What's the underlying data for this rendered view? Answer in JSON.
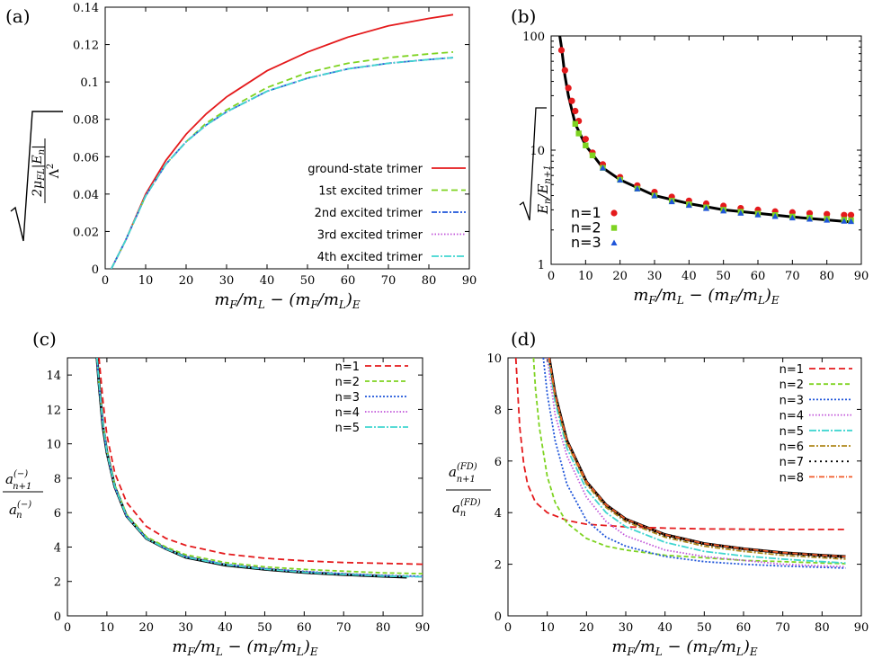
{
  "figure_labels": [
    "(a)",
    "(b)",
    "(c)",
    "(d)"
  ],
  "colors": {
    "red": "#e41a1c",
    "green": "#7ed321",
    "blue": "#1f55d9",
    "purple": "#c154d9",
    "cyan": "#40d6d0",
    "olive": "#b08a1e",
    "black": "#000000",
    "orange": "#f05a28"
  },
  "chart_data": [
    {
      "type": "line",
      "panel": "(a)",
      "xlabel": "m_F/m_L − (m_F/m_L)_E",
      "ylabel": "√(2μ_FL|E_n|/Λ²)",
      "xlim": [
        0,
        90
      ],
      "ylim": [
        0,
        0.14
      ],
      "yscale": "linear",
      "xticks": [
        0,
        10,
        20,
        30,
        40,
        50,
        60,
        70,
        80,
        90
      ],
      "yticks": [
        0,
        0.02,
        0.04,
        0.06,
        0.08,
        0.1,
        0.12,
        0.14
      ],
      "ytick_labels": [
        "0",
        "0.02",
        "0.04",
        "0.06",
        "0.08",
        "0.1",
        "0.12",
        "0.14"
      ],
      "legend_position": "bottom-right",
      "series": [
        {
          "name": "ground-state trimer",
          "color": "#e41a1c",
          "dash": "none",
          "x": [
            1.5,
            5,
            10,
            15,
            20,
            25,
            30,
            40,
            50,
            60,
            70,
            80,
            86
          ],
          "y": [
            0,
            0.015,
            0.04,
            0.058,
            0.072,
            0.083,
            0.092,
            0.106,
            0.116,
            0.124,
            0.13,
            0.134,
            0.136
          ]
        },
        {
          "name": "1st excited trimer",
          "color": "#7ed321",
          "dash": "7,4",
          "x": [
            1.5,
            5,
            10,
            15,
            20,
            25,
            30,
            40,
            50,
            60,
            70,
            80,
            86
          ],
          "y": [
            0,
            0.015,
            0.039,
            0.056,
            0.068,
            0.078,
            0.085,
            0.097,
            0.105,
            0.11,
            0.113,
            0.115,
            0.116
          ]
        },
        {
          "name": "2nd excited trimer",
          "color": "#1f55d9",
          "dash": "6,2,2,2",
          "x": [
            1.5,
            5,
            10,
            15,
            20,
            25,
            30,
            40,
            50,
            60,
            70,
            80,
            86
          ],
          "y": [
            0,
            0.015,
            0.039,
            0.056,
            0.068,
            0.077,
            0.084,
            0.095,
            0.102,
            0.107,
            0.11,
            0.112,
            0.113
          ]
        },
        {
          "name": "3rd excited trimer",
          "color": "#c154d9",
          "dash": "1.5,2",
          "x": [
            1.5,
            5,
            10,
            15,
            20,
            25,
            30,
            40,
            50,
            60,
            70,
            80,
            86
          ],
          "y": [
            0,
            0.015,
            0.039,
            0.056,
            0.068,
            0.077,
            0.084,
            0.095,
            0.102,
            0.107,
            0.11,
            0.112,
            0.113
          ]
        },
        {
          "name": "4th excited trimer",
          "color": "#40d6d0",
          "dash": "8,2,2,2",
          "x": [
            1.5,
            5,
            10,
            15,
            20,
            25,
            30,
            40,
            50,
            60,
            70,
            80,
            86
          ],
          "y": [
            0,
            0.015,
            0.039,
            0.056,
            0.068,
            0.077,
            0.084,
            0.095,
            0.102,
            0.107,
            0.11,
            0.112,
            0.113
          ]
        }
      ]
    },
    {
      "type": "scatter",
      "panel": "(b)",
      "xlabel": "m_F/m_L − (m_F/m_L)_E",
      "ylabel": "√(E_n/E_{n+1})",
      "xlim": [
        0,
        90
      ],
      "ylim": [
        1,
        100
      ],
      "yscale": "log",
      "xticks": [
        0,
        10,
        20,
        30,
        40,
        50,
        60,
        70,
        80,
        90
      ],
      "yticks": [
        1,
        10,
        100
      ],
      "ytick_labels": [
        "1",
        "10",
        "100"
      ],
      "legend_position": "bottom-left",
      "reference_curve": {
        "color": "#000000",
        "x": [
          2.5,
          3,
          4,
          5,
          7,
          10,
          15,
          20,
          30,
          40,
          50,
          60,
          70,
          80,
          87
        ],
        "y": [
          100,
          80,
          45,
          30,
          17,
          11,
          7,
          5.5,
          4,
          3.4,
          3,
          2.8,
          2.6,
          2.45,
          2.35
        ]
      },
      "series": [
        {
          "name": "n=1",
          "color": "#e41a1c",
          "marker": "circle",
          "x": [
            3,
            4,
            5,
            6,
            7,
            8,
            10,
            12,
            15,
            20,
            25,
            30,
            35,
            40,
            45,
            50,
            55,
            60,
            65,
            70,
            75,
            80,
            85,
            87
          ],
          "y": [
            75,
            50,
            35,
            27,
            22,
            18,
            12.5,
            9.5,
            7.5,
            5.8,
            4.9,
            4.3,
            3.9,
            3.6,
            3.4,
            3.25,
            3.1,
            3.0,
            2.9,
            2.85,
            2.8,
            2.75,
            2.7,
            2.7
          ]
        },
        {
          "name": "n=2",
          "color": "#7ed321",
          "marker": "square",
          "x": [
            7,
            8,
            10,
            12,
            15,
            20,
            25,
            30,
            35,
            40,
            45,
            50,
            55,
            60,
            65,
            70,
            75,
            80,
            85,
            87
          ],
          "y": [
            17,
            14,
            11,
            9,
            7,
            5.5,
            4.6,
            4.0,
            3.6,
            3.35,
            3.15,
            3.0,
            2.88,
            2.78,
            2.7,
            2.62,
            2.56,
            2.5,
            2.45,
            2.43
          ]
        },
        {
          "name": "n=3",
          "color": "#1f55d9",
          "marker": "triangle",
          "x": [
            15,
            20,
            25,
            30,
            35,
            40,
            45,
            50,
            55,
            60,
            65,
            70,
            75,
            80,
            85,
            87
          ],
          "y": [
            7,
            5.5,
            4.6,
            4.0,
            3.55,
            3.3,
            3.1,
            2.95,
            2.82,
            2.72,
            2.64,
            2.56,
            2.5,
            2.45,
            2.4,
            2.38
          ]
        }
      ]
    },
    {
      "type": "line",
      "panel": "(c)",
      "xlabel": "m_F/m_L − (m_F/m_L)_E",
      "ylabel": "a_{n+1}^{(−)} / a_n^{(−)}",
      "xlim": [
        0,
        90
      ],
      "ylim": [
        0,
        15
      ],
      "yscale": "linear",
      "xticks": [
        0,
        10,
        20,
        30,
        40,
        50,
        60,
        70,
        80,
        90
      ],
      "yticks": [
        0,
        2,
        4,
        6,
        8,
        10,
        12,
        14
      ],
      "ytick_labels": [
        "0",
        "2",
        "4",
        "6",
        "8",
        "10",
        "12",
        "14"
      ],
      "legend_position": "top-right",
      "reference_curve": {
        "color": "#000000",
        "x": [
          7.5,
          8,
          9,
          10,
          12,
          15,
          20,
          25,
          30,
          40,
          50,
          60,
          70,
          80,
          86
        ],
        "y": [
          15,
          13.5,
          11,
          9.5,
          7.5,
          5.8,
          4.5,
          3.9,
          3.4,
          2.95,
          2.7,
          2.52,
          2.4,
          2.3,
          2.25
        ]
      },
      "series": [
        {
          "name": "n=1",
          "color": "#e41a1c",
          "dash": "7,4",
          "x": [
            8,
            9,
            10,
            12,
            15,
            20,
            25,
            30,
            40,
            50,
            60,
            70,
            80,
            90
          ],
          "y": [
            15,
            12.5,
            10.5,
            8.3,
            6.6,
            5.2,
            4.5,
            4.1,
            3.6,
            3.35,
            3.2,
            3.1,
            3.05,
            3.0
          ]
        },
        {
          "name": "n=2",
          "color": "#7ed321",
          "dash": "5,3",
          "x": [
            7.5,
            8,
            9,
            10,
            12,
            15,
            20,
            25,
            30,
            40,
            50,
            60,
            70,
            80,
            90
          ],
          "y": [
            15,
            13.6,
            11.2,
            9.6,
            7.6,
            5.9,
            4.6,
            4.0,
            3.55,
            3.1,
            2.85,
            2.7,
            2.6,
            2.5,
            2.45
          ]
        },
        {
          "name": "n=3",
          "color": "#1f55d9",
          "dash": "2,2",
          "x": [
            7.5,
            8,
            9,
            10,
            12,
            15,
            20,
            25,
            30,
            40,
            50,
            60,
            70,
            80,
            90
          ],
          "y": [
            15,
            13.5,
            11.1,
            9.5,
            7.5,
            5.8,
            4.5,
            3.9,
            3.45,
            3.0,
            2.75,
            2.58,
            2.45,
            2.35,
            2.3
          ]
        },
        {
          "name": "n=4",
          "color": "#c154d9",
          "dash": "1.5,2",
          "x": [
            7.5,
            8,
            9,
            10,
            12,
            15,
            20,
            25,
            30,
            40,
            50,
            60,
            70,
            80,
            90
          ],
          "y": [
            15,
            13.5,
            11.1,
            9.5,
            7.5,
            5.8,
            4.5,
            3.9,
            3.42,
            2.98,
            2.72,
            2.55,
            2.42,
            2.32,
            2.28
          ]
        },
        {
          "name": "n=5",
          "color": "#40d6d0",
          "dash": "8,2,2,2",
          "x": [
            7.5,
            8,
            9,
            10,
            12,
            15,
            20,
            25,
            30,
            40,
            50,
            60,
            70,
            80,
            90
          ],
          "y": [
            15,
            13.5,
            11.1,
            9.5,
            7.5,
            5.8,
            4.5,
            3.9,
            3.41,
            2.97,
            2.71,
            2.53,
            2.41,
            2.31,
            2.27
          ]
        }
      ]
    },
    {
      "type": "line",
      "panel": "(d)",
      "xlabel": "m_F/m_L − (m_F/m_L)_E",
      "ylabel": "a_{n+1}^{(FD)} / a_n^{(FD)}",
      "xlim": [
        0,
        90
      ],
      "ylim": [
        0,
        10
      ],
      "yscale": "linear",
      "xticks": [
        0,
        10,
        20,
        30,
        40,
        50,
        60,
        70,
        80,
        90
      ],
      "yticks": [
        0,
        2,
        4,
        6,
        8,
        10
      ],
      "ytick_labels": [
        "0",
        "2",
        "4",
        "6",
        "8",
        "10"
      ],
      "legend_position": "top-right",
      "reference_curve": {
        "color": "#000000",
        "x": [
          10.5,
          12,
          15,
          20,
          25,
          30,
          40,
          50,
          60,
          70,
          80,
          86
        ],
        "y": [
          10,
          8.6,
          6.8,
          5.2,
          4.3,
          3.75,
          3.15,
          2.8,
          2.6,
          2.45,
          2.35,
          2.3
        ]
      },
      "series": [
        {
          "name": "n=1",
          "color": "#e41a1c",
          "dash": "7,4",
          "x": [
            2,
            3,
            4,
            5,
            7,
            10,
            15,
            20,
            30,
            40,
            50,
            60,
            70,
            80,
            86
          ],
          "y": [
            10,
            7.3,
            5.9,
            5.1,
            4.4,
            4.0,
            3.7,
            3.55,
            3.45,
            3.4,
            3.37,
            3.36,
            3.35,
            3.35,
            3.35
          ]
        },
        {
          "name": "n=2",
          "color": "#7ed321",
          "dash": "5,3",
          "x": [
            6.5,
            7,
            8,
            10,
            12,
            15,
            20,
            25,
            30,
            40,
            50,
            60,
            70,
            80,
            86
          ],
          "y": [
            10,
            8.8,
            7.3,
            5.4,
            4.4,
            3.6,
            3.0,
            2.7,
            2.55,
            2.35,
            2.25,
            2.15,
            2.1,
            2.05,
            2.02
          ]
        },
        {
          "name": "n=3",
          "color": "#1f55d9",
          "dash": "2,2",
          "x": [
            9,
            10,
            12,
            15,
            20,
            25,
            30,
            40,
            50,
            60,
            70,
            80,
            86
          ],
          "y": [
            10,
            8.6,
            6.8,
            5.1,
            3.7,
            3.05,
            2.7,
            2.3,
            2.1,
            2.0,
            1.93,
            1.88,
            1.85
          ]
        },
        {
          "name": "n=4",
          "color": "#c154d9",
          "dash": "1.5,2",
          "x": [
            10,
            12,
            15,
            20,
            25,
            30,
            40,
            50,
            60,
            70,
            80,
            86
          ],
          "y": [
            10,
            7.8,
            6.2,
            4.6,
            3.65,
            3.1,
            2.55,
            2.3,
            2.15,
            2.0,
            1.93,
            1.9
          ]
        },
        {
          "name": "n=5",
          "color": "#40d6d0",
          "dash": "8,2,2,2",
          "x": [
            10.3,
            12,
            15,
            20,
            25,
            30,
            40,
            50,
            60,
            70,
            80,
            86
          ],
          "y": [
            10,
            8.3,
            6.5,
            4.9,
            4.0,
            3.45,
            2.85,
            2.5,
            2.32,
            2.2,
            2.1,
            2.05
          ]
        },
        {
          "name": "n=6",
          "color": "#b08a1e",
          "dash": "6,2,2,2",
          "x": [
            10.4,
            12,
            15,
            20,
            25,
            30,
            40,
            50,
            60,
            70,
            80,
            86
          ],
          "y": [
            10,
            8.5,
            6.7,
            5.1,
            4.2,
            3.65,
            3.05,
            2.7,
            2.5,
            2.35,
            2.25,
            2.2
          ]
        },
        {
          "name": "n=7",
          "color": "#000000",
          "dash": "2,4",
          "x": [
            10.5,
            12,
            15,
            20,
            25,
            30,
            40,
            50,
            60,
            70,
            80,
            86
          ],
          "y": [
            10,
            8.6,
            6.8,
            5.2,
            4.28,
            3.72,
            3.1,
            2.77,
            2.57,
            2.42,
            2.3,
            2.25
          ]
        },
        {
          "name": "n=8",
          "color": "#f05a28",
          "dash": "6,2,1,2",
          "x": [
            10.5,
            12,
            15,
            20,
            25,
            30,
            40,
            50,
            60,
            70,
            80,
            86
          ],
          "y": [
            10,
            8.6,
            6.8,
            5.2,
            4.3,
            3.75,
            3.15,
            2.8,
            2.6,
            2.45,
            2.35,
            2.3
          ]
        }
      ]
    }
  ]
}
